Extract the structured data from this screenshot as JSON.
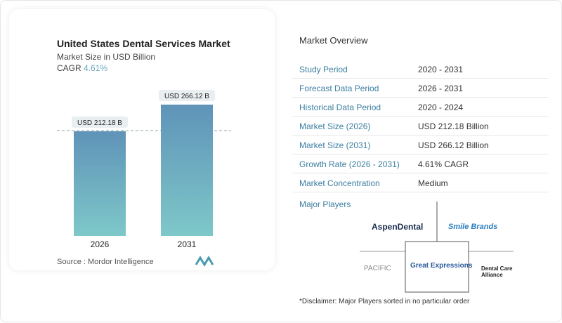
{
  "chart_data": {
    "type": "bar",
    "title": "United States Dental Services Market",
    "subtitle": "Market Size in USD Billion",
    "cagr_label": "CAGR",
    "cagr_value": "4.61%",
    "categories": [
      "2026",
      "2031"
    ],
    "values": [
      212.18,
      266.12
    ],
    "data_labels": [
      "USD 212.18 B",
      "USD 266.12 B"
    ],
    "source": "Source : Mordor Intelligence",
    "colors": {
      "top": "#5f93b8",
      "bottom": "#7ec8c9"
    }
  },
  "overview": {
    "title": "Market Overview",
    "rows": [
      {
        "label": "Study Period",
        "value": "2020 - 2031"
      },
      {
        "label": "Forecast Data Period",
        "value": "2026 - 2031"
      },
      {
        "label": "Historical Data Period",
        "value": "2020 - 2024"
      },
      {
        "label": "Market Size (2026)",
        "value": "USD 212.18 Billion"
      },
      {
        "label": "Market Size (2031)",
        "value": "USD 266.12 Billion"
      },
      {
        "label": "Growth Rate (2026 - 2031)",
        "value": "4.61% CAGR"
      },
      {
        "label": "Market Concentration",
        "value": "Medium"
      }
    ]
  },
  "players": {
    "title": "Major Players",
    "logos": [
      "AspenDental",
      "Smile Brands",
      "PACIFIC",
      "Great Expressions",
      "Dental Care Alliance"
    ]
  },
  "disclaimer": "*Disclaimer: Major Players sorted in no particular order"
}
